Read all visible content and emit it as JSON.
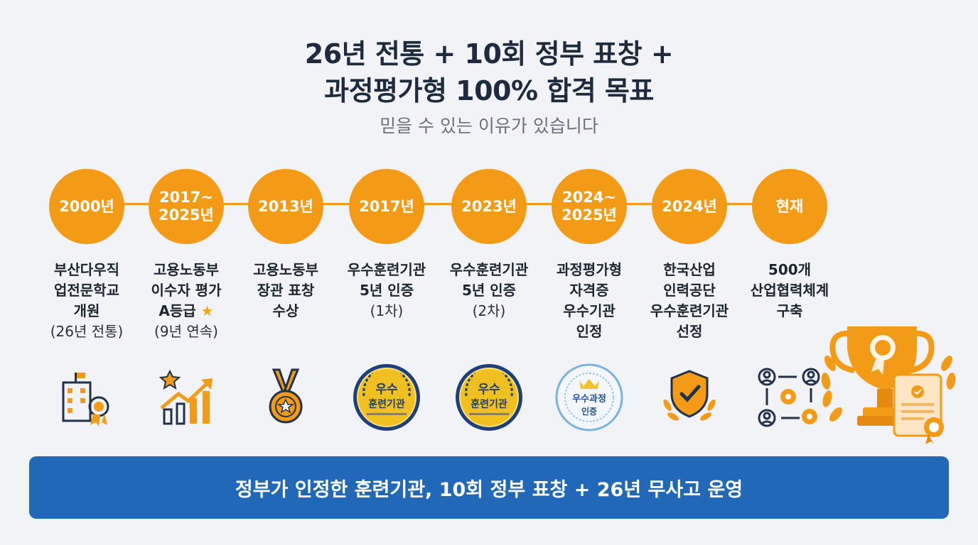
{
  "header": {
    "title_line1": "26년 전통 + 10회 정부 표창 +",
    "title_line2": "과정평가형 100% 합격 목표",
    "subtitle": "믿을 수 있는 이유가 있습니다"
  },
  "timeline": [
    {
      "year": "2000년",
      "lines": [
        "부산다우직",
        "업전문학교",
        "개원"
      ],
      "note": "(26년 전통)",
      "icon": "building-award-icon"
    },
    {
      "year": "2017~\n2025년",
      "lines": [
        "고용노동부",
        "이수자 평가"
      ],
      "grade": "A등급",
      "note": "(9년 연속)",
      "icon": "growth-chart-icon"
    },
    {
      "year": "2013년",
      "lines": [
        "고용노동부",
        "장관 표창",
        "수상"
      ],
      "note": "",
      "icon": "medal-icon"
    },
    {
      "year": "2017년",
      "lines": [
        "우수훈련기관",
        "5년 인증"
      ],
      "note": "(1차)",
      "icon": "excellence-seal-icon",
      "seal_top": "우수",
      "seal_bottom": "훈련기관"
    },
    {
      "year": "2023년",
      "lines": [
        "우수훈련기관",
        "5년 인증"
      ],
      "note": "(2차)",
      "icon": "excellence-seal-icon",
      "seal_top": "우수",
      "seal_bottom": "훈련기관"
    },
    {
      "year": "2024~\n2025년",
      "lines": [
        "과정평가형",
        "자격증",
        "우수기관",
        "인정"
      ],
      "note": "",
      "icon": "certification-seal-icon",
      "seal_top": "우수과정",
      "seal_bottom": "인증"
    },
    {
      "year": "2024년",
      "lines": [
        "한국산업",
        "인력공단",
        "우수훈련기관",
        "선정"
      ],
      "note": "",
      "icon": "shield-check-icon"
    },
    {
      "year": "현재",
      "lines": [
        "500개",
        "산업협력체계",
        "구축"
      ],
      "note": "",
      "icon": "industry-network-icon"
    }
  ],
  "decoration": {
    "icon": "trophy-certificate-icon"
  },
  "banner": {
    "text": "정부가 인정한 훈련기관, 10회 정부 표창 + 26년 무사고 운영"
  },
  "colors": {
    "accent": "#f39b16",
    "banner": "#2168b8",
    "title": "#1e2a3d"
  }
}
